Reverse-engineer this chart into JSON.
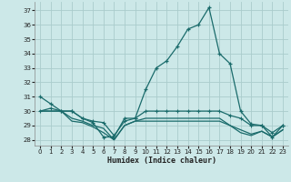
{
  "background_color": "#cce8e8",
  "grid_color": "#aacccc",
  "line_color": "#1a6b6b",
  "x": [
    0,
    1,
    2,
    3,
    4,
    5,
    6,
    7,
    8,
    9,
    10,
    11,
    12,
    13,
    14,
    15,
    16,
    17,
    18,
    19,
    20,
    21,
    22,
    23
  ],
  "series1": [
    31.0,
    30.5,
    30.0,
    30.0,
    29.5,
    29.2,
    28.2,
    28.2,
    29.5,
    29.5,
    31.5,
    33.0,
    33.5,
    34.5,
    35.7,
    36.0,
    37.2,
    34.0,
    33.3,
    30.0,
    29.1,
    29.0,
    28.2,
    29.0
  ],
  "series2": [
    30.0,
    30.2,
    30.0,
    30.0,
    29.5,
    29.3,
    29.2,
    28.3,
    29.3,
    29.5,
    30.0,
    30.0,
    30.0,
    30.0,
    30.0,
    30.0,
    30.0,
    30.0,
    29.7,
    29.5,
    29.0,
    29.0,
    28.5,
    29.0
  ],
  "series3": [
    30.0,
    30.0,
    30.0,
    29.5,
    29.3,
    29.0,
    28.8,
    28.0,
    29.0,
    29.3,
    29.5,
    29.5,
    29.5,
    29.5,
    29.5,
    29.5,
    29.5,
    29.5,
    29.0,
    28.7,
    28.4,
    28.6,
    28.2,
    28.7
  ],
  "series4": [
    30.0,
    30.0,
    30.0,
    29.3,
    29.2,
    28.9,
    28.5,
    28.0,
    29.0,
    29.3,
    29.3,
    29.3,
    29.3,
    29.3,
    29.3,
    29.3,
    29.3,
    29.3,
    29.0,
    28.5,
    28.3,
    28.6,
    28.2,
    28.7
  ],
  "ylim": [
    27.6,
    37.6
  ],
  "yticks": [
    28,
    29,
    30,
    31,
    32,
    33,
    34,
    35,
    36,
    37
  ],
  "xticks": [
    0,
    1,
    2,
    3,
    4,
    5,
    6,
    7,
    8,
    9,
    10,
    11,
    12,
    13,
    14,
    15,
    16,
    17,
    18,
    19,
    20,
    21,
    22,
    23
  ],
  "xlabel": "Humidex (Indice chaleur)"
}
